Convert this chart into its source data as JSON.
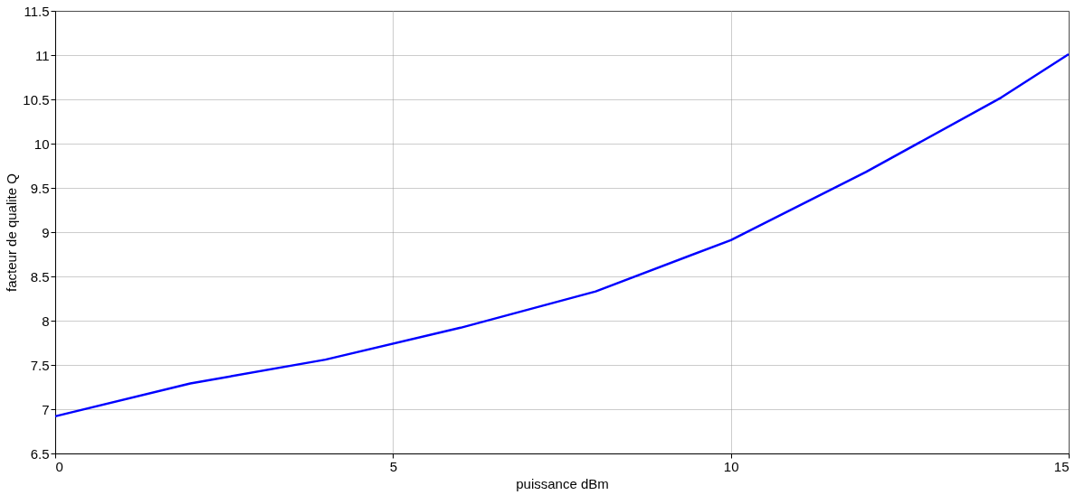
{
  "chart_data": {
    "type": "line",
    "xlabel": "puissance dBm",
    "ylabel": "facteur de qualite Q",
    "x": [
      0,
      2,
      4,
      6,
      8,
      10,
      12,
      14,
      15
    ],
    "series": [
      {
        "color": "#0000ff",
        "values": [
          6.92,
          7.29,
          7.56,
          7.92,
          8.33,
          8.91,
          9.68,
          10.52,
          11.01
        ]
      }
    ],
    "xlim": [
      0,
      15
    ],
    "xticks": [
      0,
      5,
      10,
      15
    ],
    "ylim": [
      6.5,
      11.5
    ],
    "yticks": [
      6.5,
      7,
      7.5,
      8,
      8.5,
      9,
      9.5,
      10,
      10.5,
      11,
      11.5
    ],
    "grid": true,
    "marker": "none",
    "line_style": "solid"
  }
}
